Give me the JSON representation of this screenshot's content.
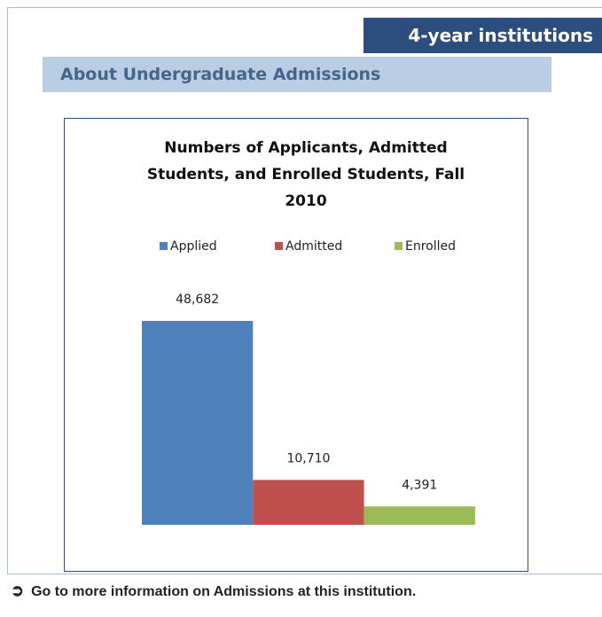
{
  "badge": "4-year institutions",
  "section_title": "About Undergraduate Admissions",
  "link": "Go to more information on Admissions at this institution.",
  "chart_data": {
    "type": "bar",
    "title": "Numbers of Applicants, Admitted Students, and Enrolled Students, Fall 2010",
    "legend": "top",
    "series": [
      {
        "name": "Applied",
        "color": "#4f81bd",
        "values": [
          48682
        ],
        "value_labels": [
          "48,682"
        ]
      },
      {
        "name": "Admitted",
        "color": "#c0504d",
        "values": [
          10710
        ],
        "value_labels": [
          "10,710"
        ]
      },
      {
        "name": "Enrolled",
        "color": "#9bbb59",
        "values": [
          4391
        ],
        "value_labels": [
          "4,391"
        ]
      }
    ]
  }
}
